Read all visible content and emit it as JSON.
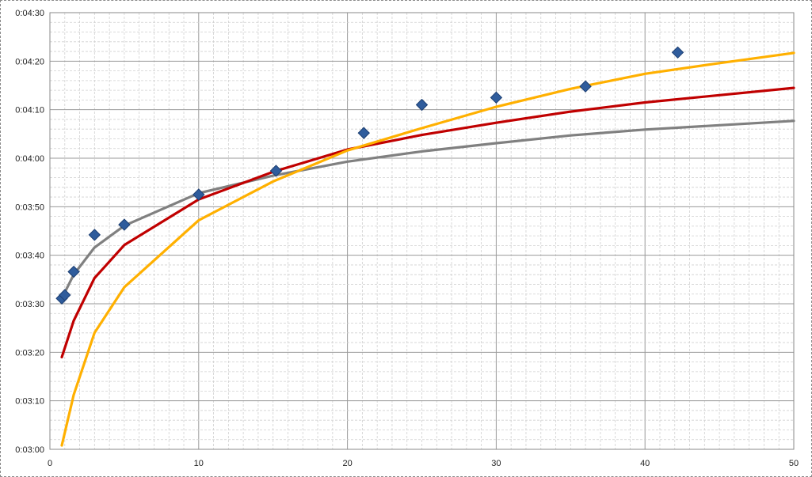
{
  "chart_data": {
    "type": "scatter",
    "title": "",
    "xlabel": "",
    "ylabel": "",
    "xlim": [
      0,
      50
    ],
    "ylim": [
      180,
      270
    ],
    "grid": true,
    "x_ticks": [
      0,
      10,
      20,
      30,
      40,
      50
    ],
    "x_tick_labels": [
      "0",
      "10",
      "20",
      "30",
      "40",
      "50"
    ],
    "y_ticks": [
      180,
      190,
      200,
      210,
      220,
      230,
      240,
      250,
      260,
      270
    ],
    "y_tick_labels": [
      "0:03:00",
      "0:03:10",
      "0:03:20",
      "0:03:30",
      "0:03:40",
      "0:03:50",
      "0:04:00",
      "0:04:10",
      "0:04:20",
      "0:04:30"
    ],
    "series": [
      {
        "type": "scatter",
        "marker": "diamond",
        "color": "#2f5c9c",
        "points": [
          {
            "x": 0.8,
            "y": 211.1
          },
          {
            "x": 1.0,
            "y": 211.8
          },
          {
            "x": 1.6,
            "y": 216.6
          },
          {
            "x": 3.0,
            "y": 224.2
          },
          {
            "x": 5.0,
            "y": 226.3
          },
          {
            "x": 10.0,
            "y": 232.5
          },
          {
            "x": 15.2,
            "y": 237.4
          },
          {
            "x": 21.1,
            "y": 245.2
          },
          {
            "x": 25.0,
            "y": 251.0
          },
          {
            "x": 30.0,
            "y": 252.5
          },
          {
            "x": 36.0,
            "y": 254.8
          },
          {
            "x": 42.2,
            "y": 261.8
          }
        ]
      },
      {
        "type": "line",
        "color": "#808080",
        "points": [
          {
            "x": 0.8,
            "y": 211.1
          },
          {
            "x": 1.6,
            "y": 216.0
          },
          {
            "x": 3.0,
            "y": 221.6
          },
          {
            "x": 5.0,
            "y": 226.1
          },
          {
            "x": 10.0,
            "y": 232.8
          },
          {
            "x": 15.0,
            "y": 236.4
          },
          {
            "x": 20.0,
            "y": 239.3
          },
          {
            "x": 25.0,
            "y": 241.4
          },
          {
            "x": 30.0,
            "y": 243.1
          },
          {
            "x": 35.0,
            "y": 244.7
          },
          {
            "x": 40.0,
            "y": 245.9
          },
          {
            "x": 45.0,
            "y": 246.8
          },
          {
            "x": 50.0,
            "y": 247.7
          }
        ]
      },
      {
        "type": "line",
        "color": "#c00000",
        "points": [
          {
            "x": 0.8,
            "y": 199.0
          },
          {
            "x": 1.6,
            "y": 206.5
          },
          {
            "x": 3.0,
            "y": 215.3
          },
          {
            "x": 5.0,
            "y": 222.1
          },
          {
            "x": 10.0,
            "y": 231.5
          },
          {
            "x": 15.0,
            "y": 237.2
          },
          {
            "x": 20.0,
            "y": 241.8
          },
          {
            "x": 25.0,
            "y": 244.8
          },
          {
            "x": 30.0,
            "y": 247.3
          },
          {
            "x": 35.0,
            "y": 249.6
          },
          {
            "x": 40.0,
            "y": 251.5
          },
          {
            "x": 45.0,
            "y": 253.0
          },
          {
            "x": 50.0,
            "y": 254.5
          }
        ]
      },
      {
        "type": "line",
        "color": "#ffb000",
        "points": [
          {
            "x": 0.8,
            "y": 180.8
          },
          {
            "x": 1.6,
            "y": 191.2
          },
          {
            "x": 3.0,
            "y": 204.0
          },
          {
            "x": 5.0,
            "y": 213.4
          },
          {
            "x": 10.0,
            "y": 227.2
          },
          {
            "x": 15.0,
            "y": 235.2
          },
          {
            "x": 20.0,
            "y": 241.6
          },
          {
            "x": 25.0,
            "y": 246.2
          },
          {
            "x": 30.0,
            "y": 250.6
          },
          {
            "x": 35.0,
            "y": 254.3
          },
          {
            "x": 40.0,
            "y": 257.4
          },
          {
            "x": 45.0,
            "y": 259.6
          },
          {
            "x": 50.0,
            "y": 261.7
          }
        ]
      }
    ]
  }
}
